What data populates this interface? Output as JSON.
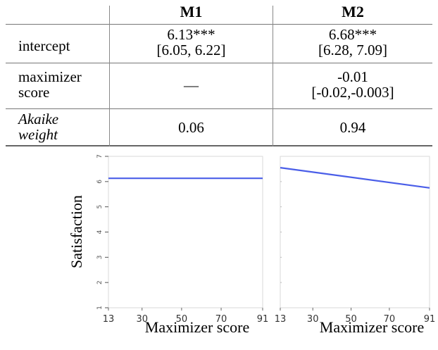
{
  "table": {
    "headers": [
      "M1",
      "M2"
    ],
    "rows": [
      {
        "label_lines": [
          "intercept"
        ],
        "italic": false,
        "m1_lines": [
          "6.13***",
          "[6.05, 6.22]"
        ],
        "m2_lines": [
          "6.68***",
          "[6.28, 7.09]"
        ]
      },
      {
        "label_lines": [
          "maximizer",
          "score"
        ],
        "italic": false,
        "m1_lines": [
          "—"
        ],
        "m2_lines": [
          "-0.01",
          "[-0.02,-0.003]"
        ]
      },
      {
        "label_lines": [
          "Akaike",
          "weight"
        ],
        "italic": true,
        "m1_lines": [
          "0.06"
        ],
        "m2_lines": [
          "0.94"
        ]
      }
    ]
  },
  "chart_data": [
    {
      "type": "line",
      "ylabel": "Satisfaction",
      "xlabel": "Maximizer score",
      "xlim": [
        13,
        91
      ],
      "ylim": [
        1,
        7
      ],
      "x_ticks": [
        "13",
        "30",
        "50",
        "70",
        "91"
      ],
      "y_ticks": [
        "1",
        "2",
        "3",
        "4",
        "5",
        "6",
        "7"
      ],
      "series": [
        {
          "x": [
            13,
            91
          ],
          "y": [
            6.13,
            6.13
          ],
          "color": "#4a5ee8"
        }
      ]
    },
    {
      "type": "line",
      "xlabel": "Maximizer score",
      "xlim": [
        13,
        91
      ],
      "ylim": [
        1,
        7
      ],
      "x_ticks": [
        "13",
        "30",
        "50",
        "70",
        "91"
      ],
      "series": [
        {
          "x": [
            13,
            91
          ],
          "y": [
            6.55,
            5.75
          ],
          "color": "#4a5ee8"
        }
      ]
    }
  ],
  "ylabel": "Satisfaction",
  "xlabel_left": "Maximizer score",
  "xlabel_right": "Maximizer score"
}
